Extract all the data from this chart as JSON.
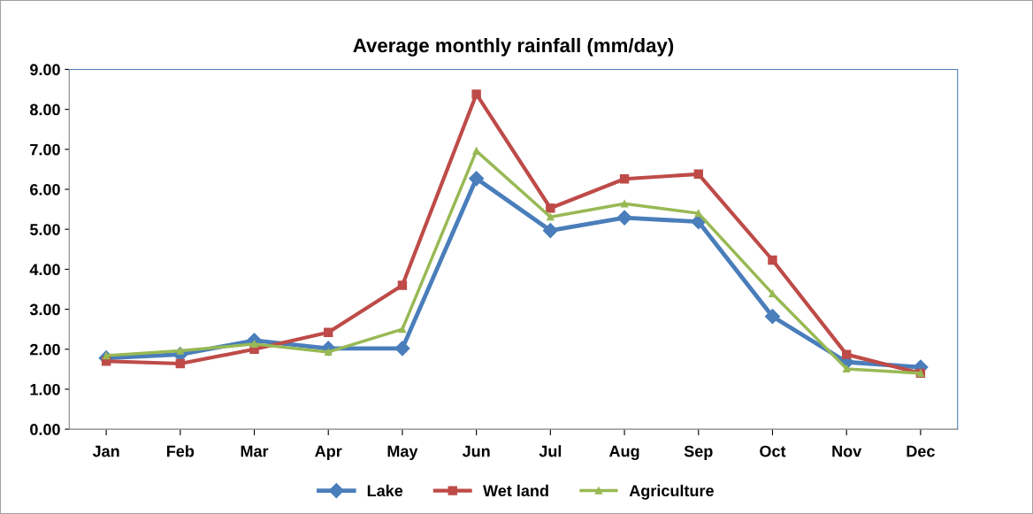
{
  "chart_data": {
    "type": "line",
    "title": "Average monthly rainfall (mm/day)",
    "categories": [
      "Jan",
      "Feb",
      "Mar",
      "Apr",
      "May",
      "Jun",
      "Jul",
      "Aug",
      "Sep",
      "Oct",
      "Nov",
      "Dec"
    ],
    "series": [
      {
        "name": "Lake",
        "color": "#4a7ebb",
        "marker": "diamond",
        "values": [
          1.78,
          1.87,
          2.22,
          2.02,
          2.02,
          6.27,
          4.97,
          5.29,
          5.19,
          2.82,
          1.68,
          1.55
        ]
      },
      {
        "name": "Wet land",
        "color": "#be4b48",
        "marker": "square",
        "values": [
          1.7,
          1.64,
          2.0,
          2.42,
          3.6,
          8.38,
          5.53,
          6.26,
          6.38,
          4.23,
          1.87,
          1.4
        ]
      },
      {
        "name": "Agriculture",
        "color": "#98b954",
        "marker": "triangle",
        "values": [
          1.84,
          1.96,
          2.13,
          1.93,
          2.5,
          6.96,
          5.31,
          5.64,
          5.4,
          3.39,
          1.51,
          1.4
        ]
      }
    ],
    "ylim": [
      0,
      9
    ],
    "yticks": [
      {
        "value": 0,
        "label": "0.00"
      },
      {
        "value": 1,
        "label": "1.00"
      },
      {
        "value": 2,
        "label": "2.00"
      },
      {
        "value": 3,
        "label": "3.00"
      },
      {
        "value": 4,
        "label": "4.00"
      },
      {
        "value": 5,
        "label": "5.00"
      },
      {
        "value": 6,
        "label": "6.00"
      },
      {
        "value": 7,
        "label": "7.00"
      },
      {
        "value": 8,
        "label": "8.00"
      },
      {
        "value": 9,
        "label": "9.00"
      }
    ],
    "grid": false,
    "legend": "bottom",
    "line_style": "solid"
  }
}
